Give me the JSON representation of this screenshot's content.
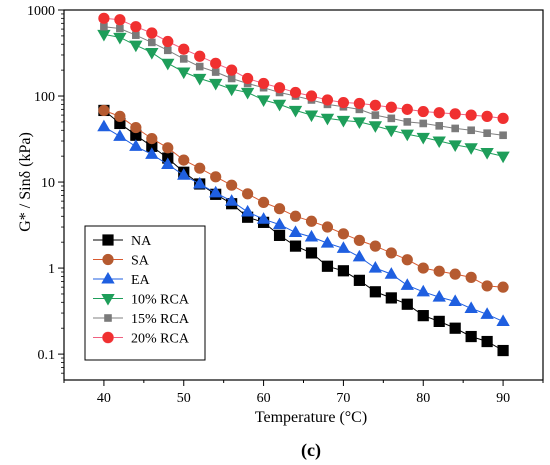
{
  "chart_data": {
    "type": "line",
    "panel_label": "(c)",
    "xlabel": "Temperature (°C)",
    "ylabel": "G* / Sinδ (kPa)",
    "xlim": [
      35,
      95
    ],
    "ylim": [
      0.05,
      1000
    ],
    "yscale": "log",
    "xticks": [
      40,
      50,
      60,
      70,
      80,
      90
    ],
    "yticks": [
      {
        "value": 0.1,
        "label": "0.1"
      },
      {
        "value": 1,
        "label": "1"
      },
      {
        "value": 10,
        "label": "10"
      },
      {
        "value": 100,
        "label": "100"
      },
      {
        "value": 1000,
        "label": "1000"
      }
    ],
    "grid": false,
    "legend_position": "bottom-left",
    "x": [
      40,
      42,
      44,
      46,
      48,
      50,
      52,
      54,
      56,
      58,
      60,
      62,
      64,
      66,
      68,
      70,
      72,
      74,
      76,
      78,
      80,
      82,
      84,
      86,
      88,
      90
    ],
    "series": [
      {
        "name": "NA",
        "marker": "square",
        "color": "#000000",
        "marker_color": "#000000",
        "values": [
          68,
          48,
          35,
          26,
          19,
          13,
          9.5,
          7.2,
          5.6,
          3.9,
          3.4,
          2.4,
          1.8,
          1.5,
          1.05,
          0.93,
          0.72,
          0.53,
          0.45,
          0.38,
          0.28,
          0.24,
          0.2,
          0.16,
          0.14,
          0.11
        ]
      },
      {
        "name": "SA",
        "marker": "circle",
        "color": "#d85a30",
        "marker_color": "#b55a30",
        "values": [
          68,
          58,
          43,
          32,
          25,
          18,
          14.5,
          11.5,
          9.2,
          7.3,
          5.8,
          4.9,
          4.0,
          3.5,
          3.0,
          2.5,
          2.1,
          1.8,
          1.5,
          1.25,
          1.0,
          0.92,
          0.85,
          0.78,
          0.62,
          0.6
        ]
      },
      {
        "name": "EA",
        "marker": "triangle-up",
        "color": "#1f5fe0",
        "marker_color": "#1f5fe0",
        "values": [
          44,
          34,
          26,
          21,
          16,
          12,
          9.5,
          7.5,
          6.0,
          4.5,
          3.7,
          3.2,
          2.6,
          2.3,
          1.95,
          1.7,
          1.35,
          1.0,
          0.85,
          0.63,
          0.53,
          0.46,
          0.41,
          0.34,
          0.29,
          0.24
        ]
      },
      {
        "name": "10% RCA",
        "marker": "triangle-down",
        "color": "#1e9e5a",
        "marker_color": "#1e9e5a",
        "values": [
          520,
          480,
          390,
          320,
          240,
          190,
          160,
          140,
          120,
          110,
          90,
          80,
          68,
          60,
          55,
          52,
          50,
          45,
          40,
          36,
          33,
          30,
          27,
          25,
          22,
          20
        ]
      },
      {
        "name": "15% RCA",
        "marker": "square-small",
        "color": "#808080",
        "marker_color": "#7a7a7a",
        "values": [
          640,
          610,
          510,
          420,
          340,
          270,
          220,
          190,
          160,
          140,
          125,
          110,
          100,
          90,
          80,
          75,
          70,
          60,
          55,
          50,
          48,
          45,
          42,
          40,
          37,
          35
        ]
      },
      {
        "name": "20% RCA",
        "marker": "circle",
        "color": "#f06080",
        "marker_color": "#f03030",
        "values": [
          800,
          770,
          640,
          540,
          430,
          350,
          290,
          240,
          200,
          160,
          140,
          125,
          110,
          100,
          90,
          84,
          82,
          78,
          74,
          70,
          66,
          64,
          62,
          60,
          58,
          55
        ]
      }
    ]
  }
}
